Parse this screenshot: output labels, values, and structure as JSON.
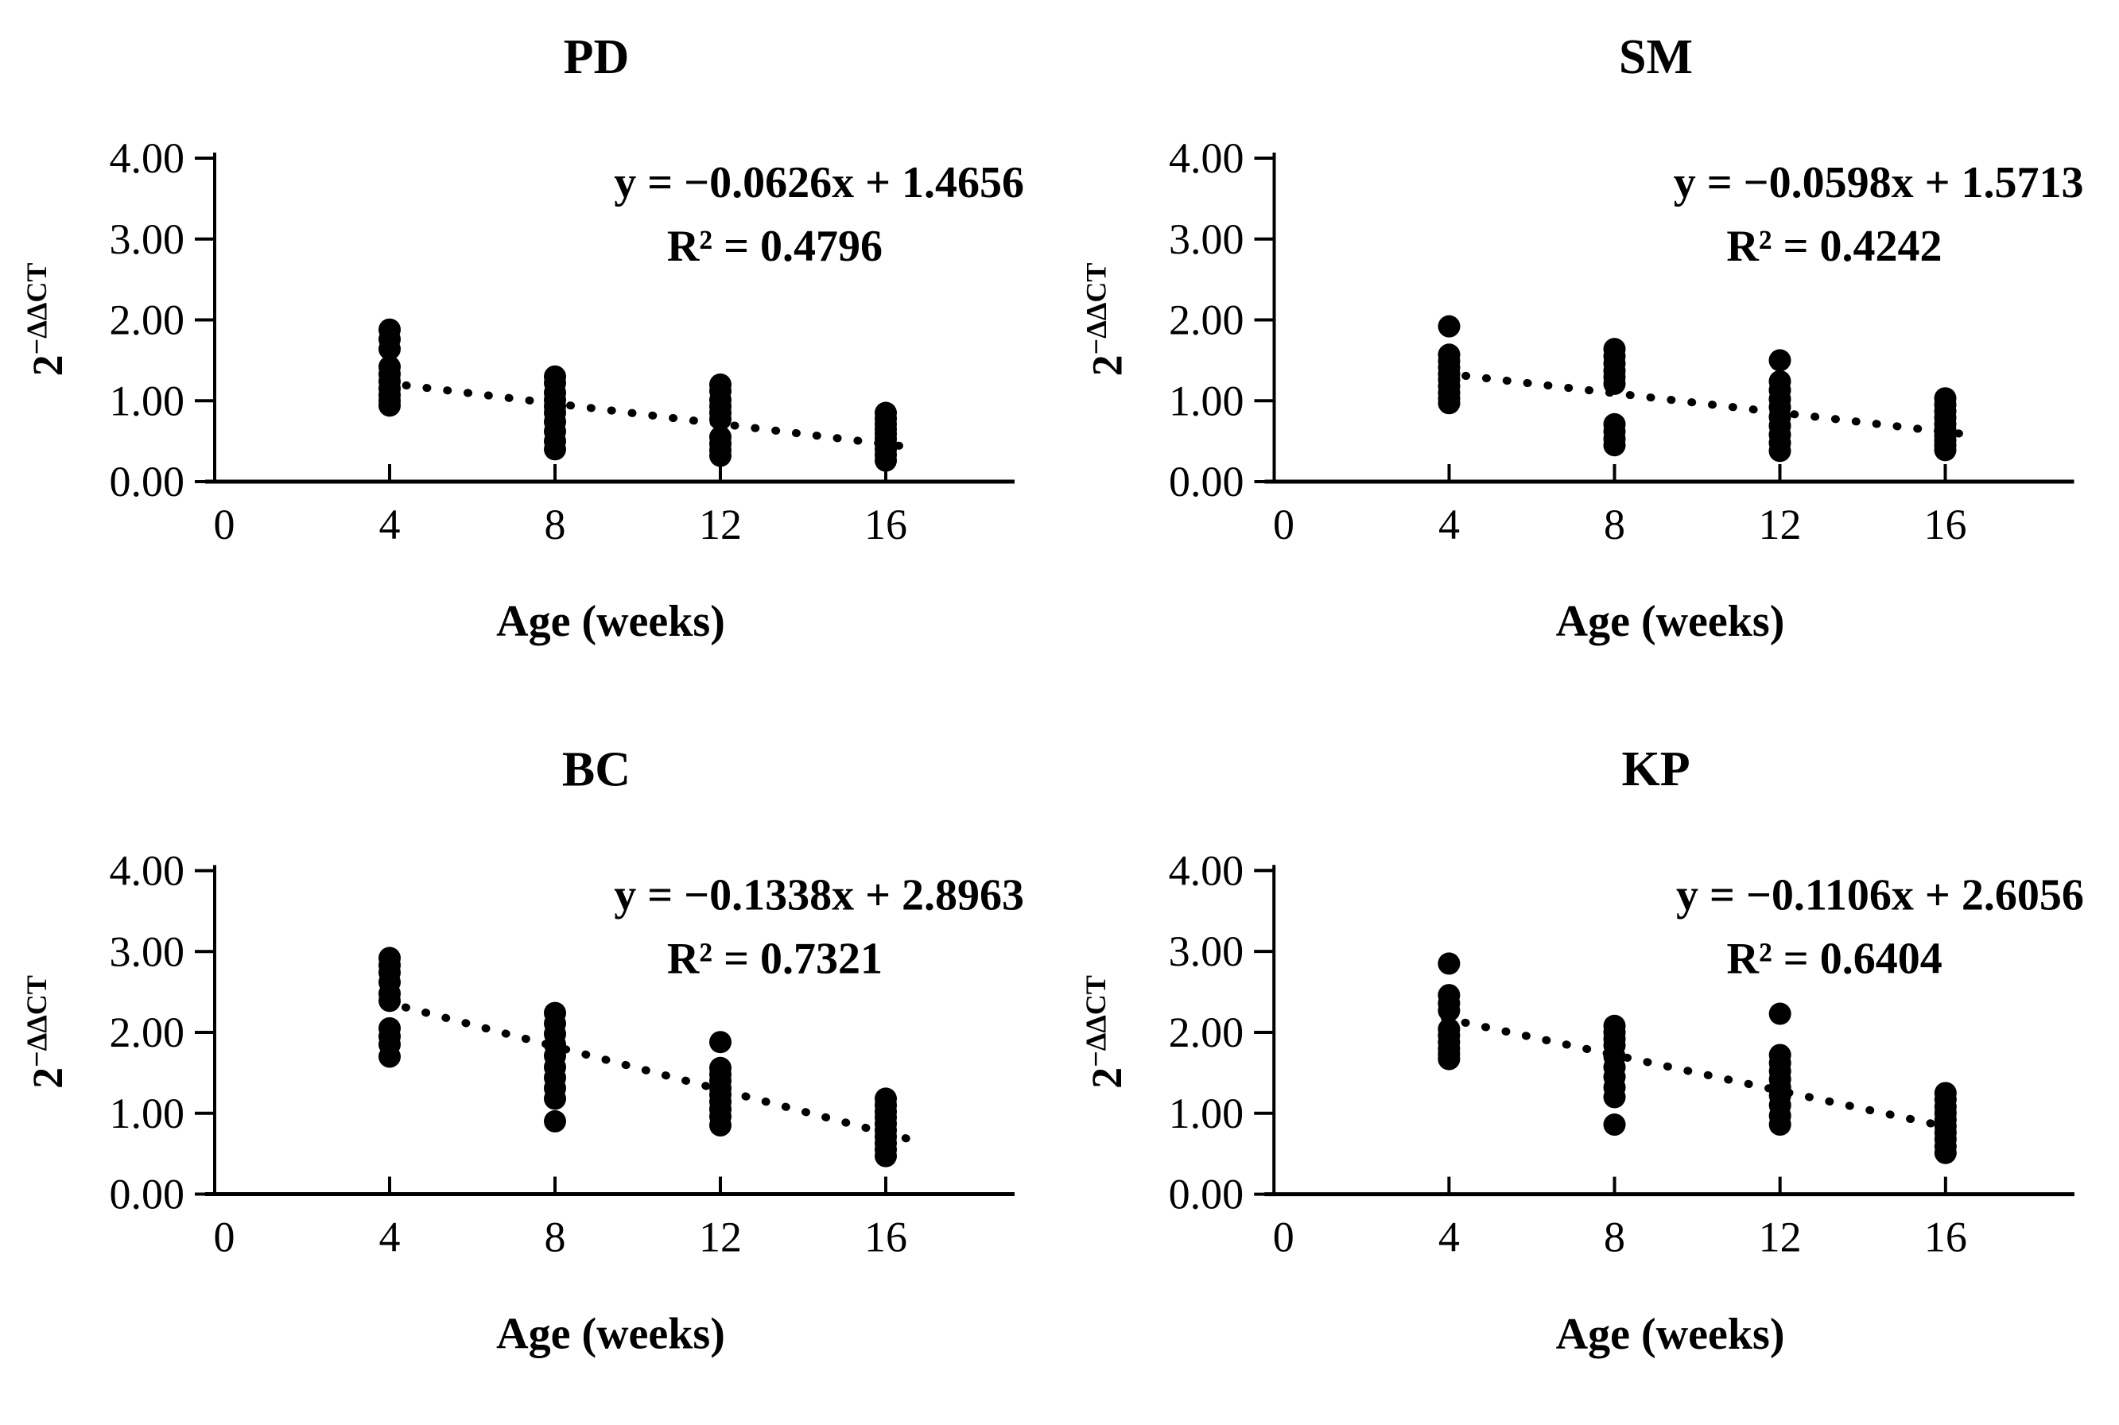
{
  "figure": {
    "background": "#ffffff",
    "ink": "#000000",
    "y_axis": {
      "label_base": "2",
      "label_sup": "−ΔΔCT",
      "min": 0,
      "max": 4,
      "ticks": [
        {
          "value": 0,
          "label": "0.00"
        },
        {
          "value": 1,
          "label": "1.00"
        },
        {
          "value": 2,
          "label": "2.00"
        },
        {
          "value": 3,
          "label": "3.00"
        },
        {
          "value": 4,
          "label": "4.00"
        }
      ]
    },
    "x_axis": {
      "label": "Age (weeks)",
      "min": 0,
      "max": 19,
      "ticks": [
        {
          "value": 0,
          "label": "0"
        },
        {
          "value": 4,
          "label": "4"
        },
        {
          "value": 8,
          "label": "8"
        },
        {
          "value": 12,
          "label": "12"
        },
        {
          "value": 16,
          "label": "16"
        }
      ]
    }
  },
  "chart_data": [
    {
      "type": "scatter",
      "title": "PD",
      "equation": "y = −0.0626x + 1.4656",
      "r_squared_label": "R² = 0.4796",
      "trend": {
        "slope": -0.0626,
        "intercept": 1.4656,
        "r2": 0.4796,
        "x_start": 3.9,
        "x_end": 16.6,
        "style": "dotted"
      },
      "xlabel": "Age (weeks)",
      "ylabel": "2^−ΔΔCT",
      "xlim": [
        0,
        19
      ],
      "ylim": [
        0,
        4
      ],
      "series": [
        {
          "x": 4,
          "values": [
            1.88,
            1.76,
            1.64,
            1.42,
            1.33,
            1.24,
            1.15,
            1.07,
            1.0,
            0.94
          ]
        },
        {
          "x": 8,
          "values": [
            1.3,
            1.22,
            1.1,
            1.01,
            0.93,
            0.85,
            0.74,
            0.62,
            0.5,
            0.4
          ]
        },
        {
          "x": 12,
          "values": [
            1.2,
            1.12,
            1.01,
            0.93,
            0.85,
            0.77,
            0.55,
            0.47,
            0.39,
            0.32
          ]
        },
        {
          "x": 16,
          "values": [
            0.85,
            0.78,
            0.71,
            0.65,
            0.59,
            0.53,
            0.47,
            0.4,
            0.33,
            0.26
          ]
        }
      ]
    },
    {
      "type": "scatter",
      "title": "SM",
      "equation": "y = −0.0598x + 1.5713",
      "r_squared_label": "R² = 0.4242",
      "trend": {
        "slope": -0.0598,
        "intercept": 1.5713,
        "r2": 0.4242,
        "x_start": 3.9,
        "x_end": 16.6,
        "style": "dotted"
      },
      "xlabel": "Age (weeks)",
      "ylabel": "2^−ΔΔCT",
      "xlim": [
        0,
        19
      ],
      "ylim": [
        0,
        4
      ],
      "series": [
        {
          "x": 4,
          "values": [
            1.92,
            1.57,
            1.49,
            1.41,
            1.33,
            1.26,
            1.18,
            1.1,
            1.03,
            0.97
          ]
        },
        {
          "x": 8,
          "values": [
            1.64,
            1.55,
            1.46,
            1.37,
            1.29,
            1.21,
            0.71,
            0.62,
            0.53,
            0.45
          ]
        },
        {
          "x": 12,
          "values": [
            1.5,
            1.24,
            1.13,
            1.02,
            0.92,
            0.8,
            0.69,
            0.58,
            0.48,
            0.38
          ]
        },
        {
          "x": 16,
          "values": [
            1.03,
            0.95,
            0.87,
            0.79,
            0.71,
            0.64,
            0.57,
            0.51,
            0.45,
            0.39
          ]
        }
      ]
    },
    {
      "type": "scatter",
      "title": "BC",
      "equation": "y = −0.1338x + 2.8963",
      "r_squared_label": "R² = 0.7321",
      "trend": {
        "slope": -0.1338,
        "intercept": 2.8963,
        "r2": 0.7321,
        "x_start": 3.9,
        "x_end": 16.6,
        "style": "dotted"
      },
      "xlabel": "Age (weeks)",
      "ylabel": "2^−ΔΔCT",
      "xlim": [
        0,
        19
      ],
      "ylim": [
        0,
        4
      ],
      "series": [
        {
          "x": 4,
          "values": [
            2.92,
            2.83,
            2.74,
            2.62,
            2.48,
            2.39,
            2.05,
            1.95,
            1.85,
            1.7
          ]
        },
        {
          "x": 8,
          "values": [
            2.24,
            2.11,
            1.98,
            1.85,
            1.71,
            1.57,
            1.44,
            1.31,
            1.18,
            0.9
          ]
        },
        {
          "x": 12,
          "values": [
            1.88,
            1.56,
            1.48,
            1.4,
            1.31,
            1.23,
            1.14,
            1.05,
            0.96,
            0.85
          ]
        },
        {
          "x": 16,
          "values": [
            1.18,
            1.1,
            1.02,
            0.95,
            0.87,
            0.79,
            0.71,
            0.63,
            0.55,
            0.47
          ]
        }
      ]
    },
    {
      "type": "scatter",
      "title": "KP",
      "equation": "y = −0.1106x + 2.6056",
      "r_squared_label": "R² = 0.6404",
      "trend": {
        "slope": -0.1106,
        "intercept": 2.6056,
        "r2": 0.6404,
        "x_start": 3.9,
        "x_end": 16.6,
        "style": "dotted"
      },
      "xlabel": "Age (weeks)",
      "ylabel": "2^−ΔΔCT",
      "xlim": [
        0,
        19
      ],
      "ylim": [
        0,
        4
      ],
      "series": [
        {
          "x": 4,
          "values": [
            2.85,
            2.46,
            2.36,
            2.27,
            2.04,
            1.96,
            1.88,
            1.8,
            1.73,
            1.67
          ]
        },
        {
          "x": 8,
          "values": [
            2.08,
            2.0,
            1.92,
            1.84,
            1.7,
            1.57,
            1.45,
            1.32,
            1.2,
            0.86
          ]
        },
        {
          "x": 12,
          "values": [
            2.23,
            1.72,
            1.62,
            1.52,
            1.42,
            1.32,
            1.22,
            1.1,
            0.97,
            0.86
          ]
        },
        {
          "x": 16,
          "values": [
            1.25,
            1.17,
            1.08,
            1.0,
            0.92,
            0.84,
            0.76,
            0.68,
            0.59,
            0.51
          ]
        }
      ]
    }
  ]
}
